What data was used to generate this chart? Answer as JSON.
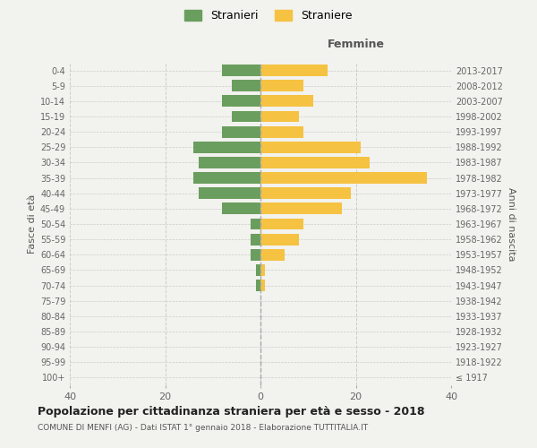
{
  "age_groups": [
    "100+",
    "95-99",
    "90-94",
    "85-89",
    "80-84",
    "75-79",
    "70-74",
    "65-69",
    "60-64",
    "55-59",
    "50-54",
    "45-49",
    "40-44",
    "35-39",
    "30-34",
    "25-29",
    "20-24",
    "15-19",
    "10-14",
    "5-9",
    "0-4"
  ],
  "birth_years": [
    "≤ 1917",
    "1918-1922",
    "1923-1927",
    "1928-1932",
    "1933-1937",
    "1938-1942",
    "1943-1947",
    "1948-1952",
    "1953-1957",
    "1958-1962",
    "1963-1967",
    "1968-1972",
    "1973-1977",
    "1978-1982",
    "1983-1987",
    "1988-1992",
    "1993-1997",
    "1998-2002",
    "2003-2007",
    "2008-2012",
    "2013-2017"
  ],
  "males": [
    0,
    0,
    0,
    0,
    0,
    0,
    1,
    1,
    2,
    2,
    2,
    8,
    13,
    14,
    13,
    14,
    8,
    6,
    8,
    6,
    8
  ],
  "females": [
    0,
    0,
    0,
    0,
    0,
    0,
    1,
    1,
    5,
    8,
    9,
    17,
    19,
    35,
    23,
    21,
    9,
    8,
    11,
    9,
    14
  ],
  "male_color": "#6a9e5e",
  "female_color": "#f5c242",
  "background_color": "#f2f2ee",
  "grid_color": "#cccccc",
  "center_line_color": "#aaaaaa",
  "title": "Popolazione per cittadinanza straniera per età e sesso - 2018",
  "subtitle": "COMUNE DI MENFI (AG) - Dati ISTAT 1° gennaio 2018 - Elaborazione TUTTITALIA.IT",
  "xlabel_right": "Femmine",
  "ylabel_left": "Fasce di età",
  "ylabel_right": "Anni di nascita",
  "legend_male": "Stranieri",
  "legend_female": "Straniere",
  "xlim": 40,
  "bar_height": 0.75
}
